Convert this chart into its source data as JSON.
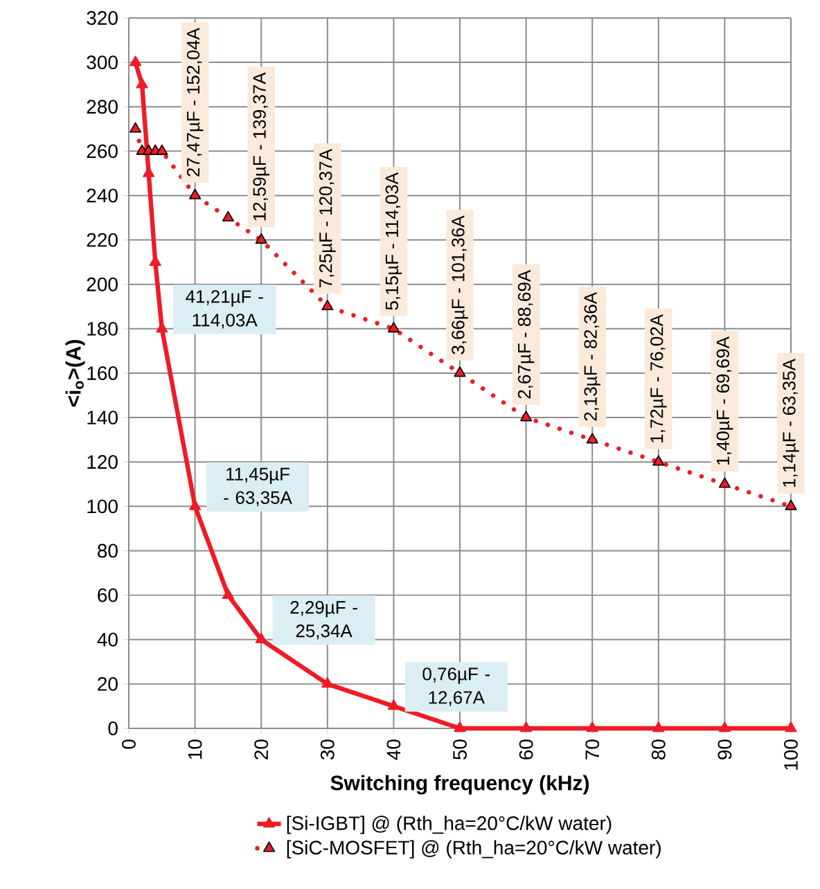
{
  "chart_data": {
    "type": "line",
    "xlabel": "Switching frequency (kHz)",
    "ylabel": "<i$_{o}$>(A)",
    "x": [
      1,
      2,
      3,
      4,
      5,
      10,
      15,
      20,
      30,
      40,
      50,
      60,
      70,
      80,
      90,
      100
    ],
    "series": [
      {
        "name": "[Si-IGBT] @ (Rth_ha=20°C/kW water)",
        "color": "#ee1c25",
        "line_style": "solid",
        "values": [
          300,
          290,
          250,
          210,
          180,
          100,
          60,
          40,
          20,
          10,
          0,
          0,
          0,
          0,
          0,
          0
        ]
      },
      {
        "name": "[SiC-MOSFET] @ (Rth_ha=20°C/kW water)",
        "color": "#ee1c25",
        "line_style": "dotted",
        "values": [
          270,
          260,
          260,
          260,
          260,
          240,
          230,
          220,
          190,
          180,
          160,
          140,
          130,
          120,
          110,
          100
        ]
      }
    ],
    "marker": "triangle",
    "xlim": [
      0,
      100
    ],
    "xticks": [
      0,
      10,
      20,
      30,
      40,
      50,
      60,
      70,
      80,
      90,
      100
    ],
    "ylim": [
      0,
      320
    ],
    "yticks": [
      0,
      20,
      40,
      60,
      80,
      100,
      120,
      140,
      160,
      180,
      200,
      220,
      240,
      260,
      280,
      300,
      320
    ],
    "grid": true,
    "legend": "bottom",
    "annotations": [
      {
        "text": "27,47µF - 152,04A",
        "x": 10,
        "y": 240
      },
      {
        "text": "12,59µF - 139,37A",
        "x": 20,
        "y": 220
      },
      {
        "text": "7,25µF - 120,37A",
        "x": 30,
        "y": 190
      },
      {
        "text": "5,15µF - 114,03A",
        "x": 40,
        "y": 180
      },
      {
        "text": "3,66µF - 101,36A",
        "x": 50,
        "y": 160
      },
      {
        "text": "2,67µF - 88,69A",
        "x": 60,
        "y": 140
      },
      {
        "text": "2,13µF - 82,36A",
        "x": 70,
        "y": 130
      },
      {
        "text": "1,72µF - 76,02A",
        "x": 80,
        "y": 120
      },
      {
        "text": "1,40µF - 69,69A",
        "x": 90,
        "y": 110
      },
      {
        "text": "1,14µF - 63,35A",
        "x": 100,
        "y": 100
      },
      {
        "text": "41,21µF - 114,03A",
        "x": 5,
        "y": 180
      },
      {
        "text": "11,45µF - 63,35A",
        "x": 10,
        "y": 100
      },
      {
        "text": "2,29µF - 25,34A",
        "x": 20,
        "y": 40
      },
      {
        "text": "0,76µF - 12,67A",
        "x": 40,
        "y": 10
      }
    ]
  }
}
